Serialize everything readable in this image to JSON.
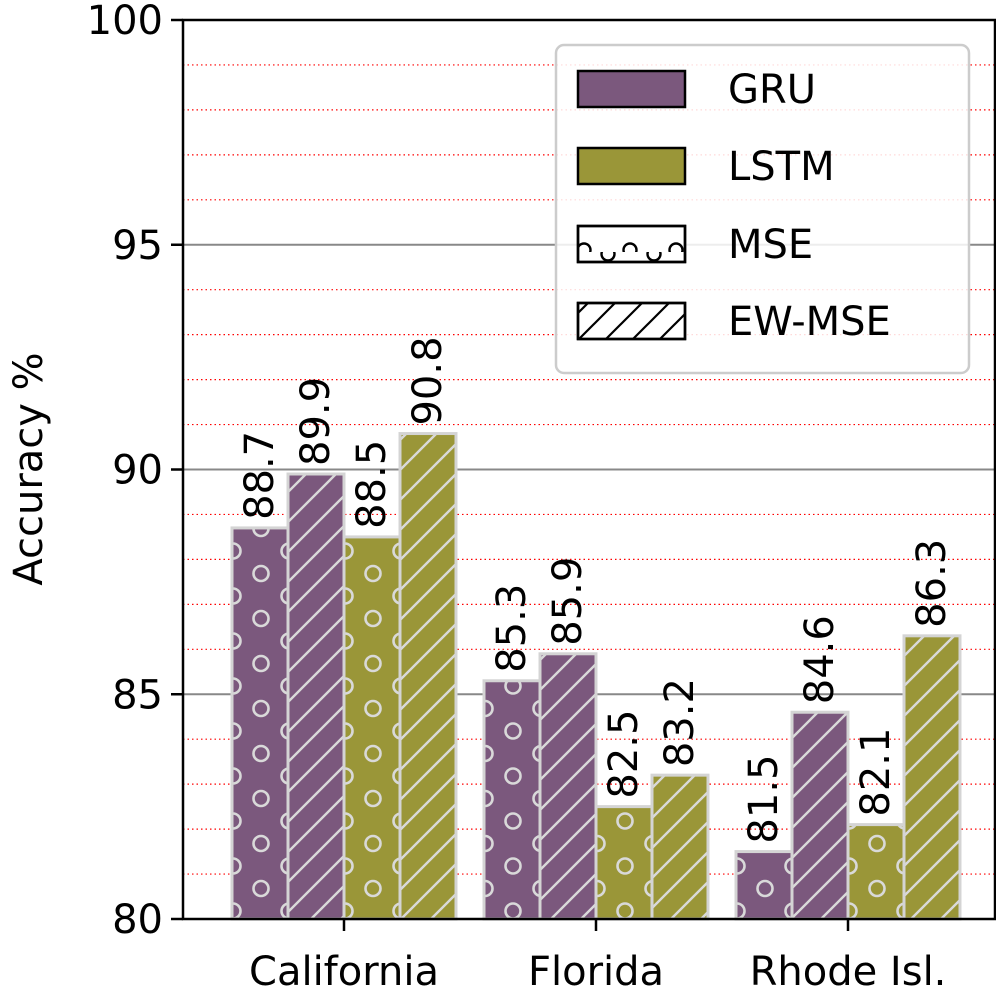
{
  "chart_data": {
    "type": "bar",
    "ylabel": "Accuracy %",
    "ylim": [
      80,
      100
    ],
    "yticks": [
      "80",
      "85",
      "90",
      "95",
      "100"
    ],
    "grid": {
      "major": true,
      "major_color": "#888888",
      "minor": true,
      "minor_color": "#ff0000",
      "minor_style": "dotted"
    },
    "legend_position": "top-right",
    "categories": [
      "California",
      "Florida",
      "Rhode Isl."
    ],
    "legend": [
      {
        "label": "GRU",
        "kind": "color",
        "color": "#7b587d"
      },
      {
        "label": "LSTM",
        "kind": "color",
        "color": "#9a9638"
      },
      {
        "label": "MSE",
        "kind": "hatch",
        "hatch": "circles"
      },
      {
        "label": "EW-MSE",
        "kind": "hatch",
        "hatch": "diagonal"
      }
    ],
    "series": [
      {
        "model": "GRU",
        "loss": "MSE",
        "color": "#7b587d",
        "hatch": "circles",
        "values": [
          88.7,
          85.3,
          81.5
        ],
        "labels": [
          "88.7",
          "85.3",
          "81.5"
        ]
      },
      {
        "model": "GRU",
        "loss": "EW-MSE",
        "color": "#7b587d",
        "hatch": "diagonal",
        "values": [
          89.9,
          85.9,
          84.6
        ],
        "labels": [
          "89.9",
          "85.9",
          "84.6"
        ]
      },
      {
        "model": "LSTM",
        "loss": "MSE",
        "color": "#9a9638",
        "hatch": "circles",
        "values": [
          88.5,
          82.5,
          82.1
        ],
        "labels": [
          "88.5",
          "82.5",
          "82.1"
        ]
      },
      {
        "model": "LSTM",
        "loss": "EW-MSE",
        "color": "#9a9638",
        "hatch": "diagonal",
        "values": [
          90.8,
          83.2,
          86.3
        ],
        "labels": [
          "90.8",
          "83.2",
          "86.3"
        ]
      }
    ]
  }
}
